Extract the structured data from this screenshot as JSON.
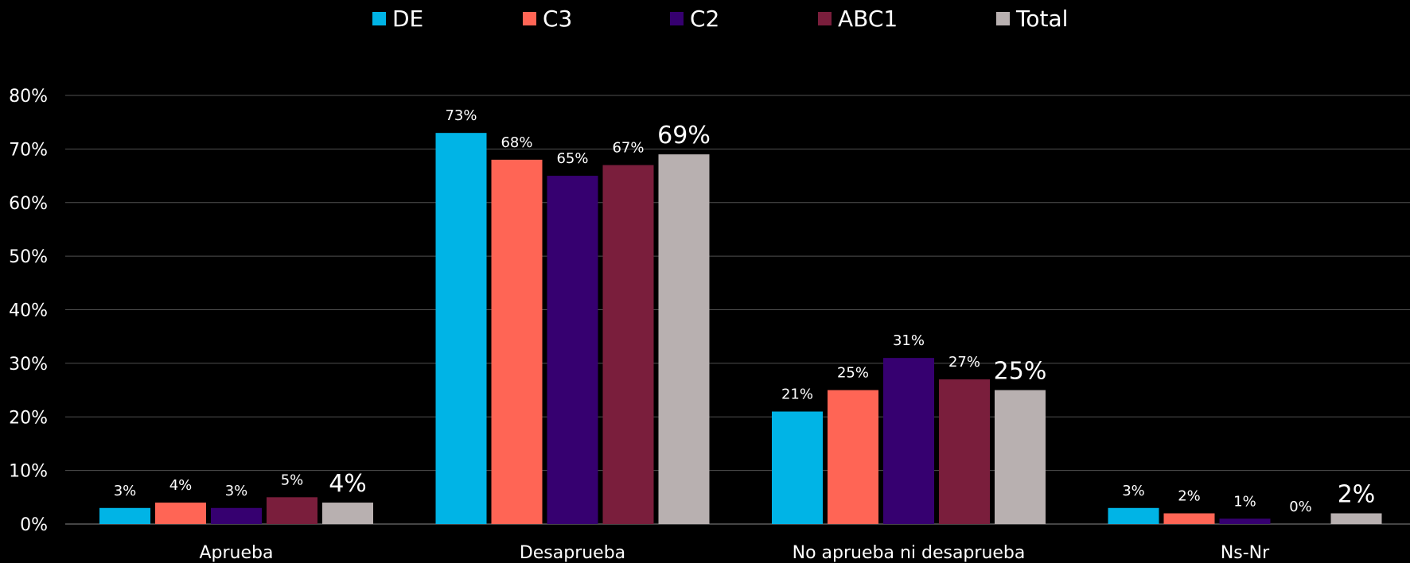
{
  "chart_data": {
    "type": "bar",
    "categories": [
      "Aprueba",
      "Desaprueba",
      "No aprueba ni desaprueba",
      "Ns-Nr"
    ],
    "series": [
      {
        "name": "DE",
        "color": "#00B4E6",
        "values": [
          3,
          73,
          21,
          3
        ],
        "labels": [
          "3%",
          "73%",
          "21%",
          "3%"
        ]
      },
      {
        "name": "C3",
        "color": "#FF6555",
        "values": [
          4,
          68,
          25,
          2
        ],
        "labels": [
          "4%",
          "68%",
          "25%",
          "2%"
        ]
      },
      {
        "name": "C2",
        "color": "#360070",
        "values": [
          3,
          65,
          31,
          1
        ],
        "labels": [
          "3%",
          "65%",
          "31%",
          "1%"
        ]
      },
      {
        "name": "ABC1",
        "color": "#7A1E3C",
        "values": [
          5,
          67,
          27,
          0
        ],
        "labels": [
          "5%",
          "67%",
          "27%",
          "0%"
        ]
      },
      {
        "name": "Total",
        "color": "#B8B0B0",
        "values": [
          4,
          69,
          25,
          2
        ],
        "labels": [
          "4%",
          "69%",
          "25%",
          "2%"
        ]
      }
    ],
    "ylim": [
      0,
      80
    ],
    "yticks": [
      "0%",
      "10%",
      "20%",
      "30%",
      "40%",
      "50%",
      "60%",
      "70%",
      "80%"
    ],
    "title": "",
    "xlabel": "",
    "ylabel": "",
    "grid": true,
    "legend_position": "top",
    "background": "#000000",
    "gridline_color": "#505050"
  }
}
